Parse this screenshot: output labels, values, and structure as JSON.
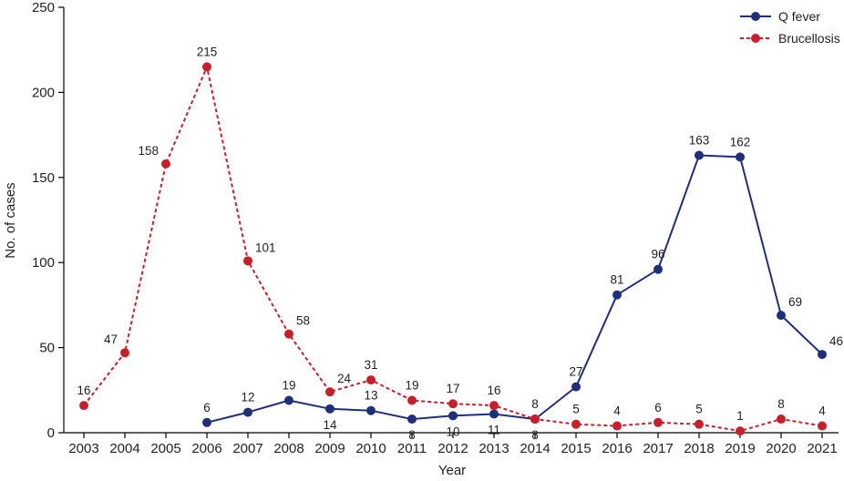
{
  "chart_data": {
    "type": "line",
    "xlabel": "Year",
    "ylabel": "No. of cases",
    "ylim": [
      0,
      250
    ],
    "yticks": [
      0,
      50,
      100,
      150,
      200,
      250
    ],
    "x": [
      "2003",
      "2004",
      "2005",
      "2006",
      "2007",
      "2008",
      "2009",
      "2010",
      "2011",
      "2012",
      "2013",
      "2014",
      "2015",
      "2016",
      "2017",
      "2018",
      "2019",
      "2020",
      "2021"
    ],
    "grid": false,
    "legend_position": "top-right",
    "series": [
      {
        "name": "Q fever",
        "color": "#1f2f7a",
        "line_style": "solid",
        "values": [
          null,
          null,
          null,
          6,
          12,
          19,
          14,
          13,
          8,
          10,
          11,
          8,
          27,
          81,
          96,
          163,
          162,
          69,
          46
        ],
        "label_positions": [
          "",
          "",
          "",
          "above",
          "above",
          "above",
          "below",
          "above",
          "below",
          "below",
          "below",
          "below",
          "above",
          "above",
          "above",
          "above",
          "above",
          "above-right",
          "above-right"
        ]
      },
      {
        "name": "Brucellosis",
        "color": "#c8202a",
        "line_style": "dashed",
        "values": [
          16,
          47,
          158,
          215,
          101,
          58,
          24,
          31,
          19,
          17,
          16,
          8,
          5,
          4,
          6,
          5,
          1,
          8,
          4
        ],
        "label_positions": [
          "above",
          "above-left",
          "above-left",
          "above",
          "above-right",
          "above-right",
          "above-right",
          "above",
          "above",
          "above",
          "above",
          "above",
          "above",
          "above",
          "above",
          "above",
          "above",
          "above",
          "above"
        ]
      }
    ]
  }
}
